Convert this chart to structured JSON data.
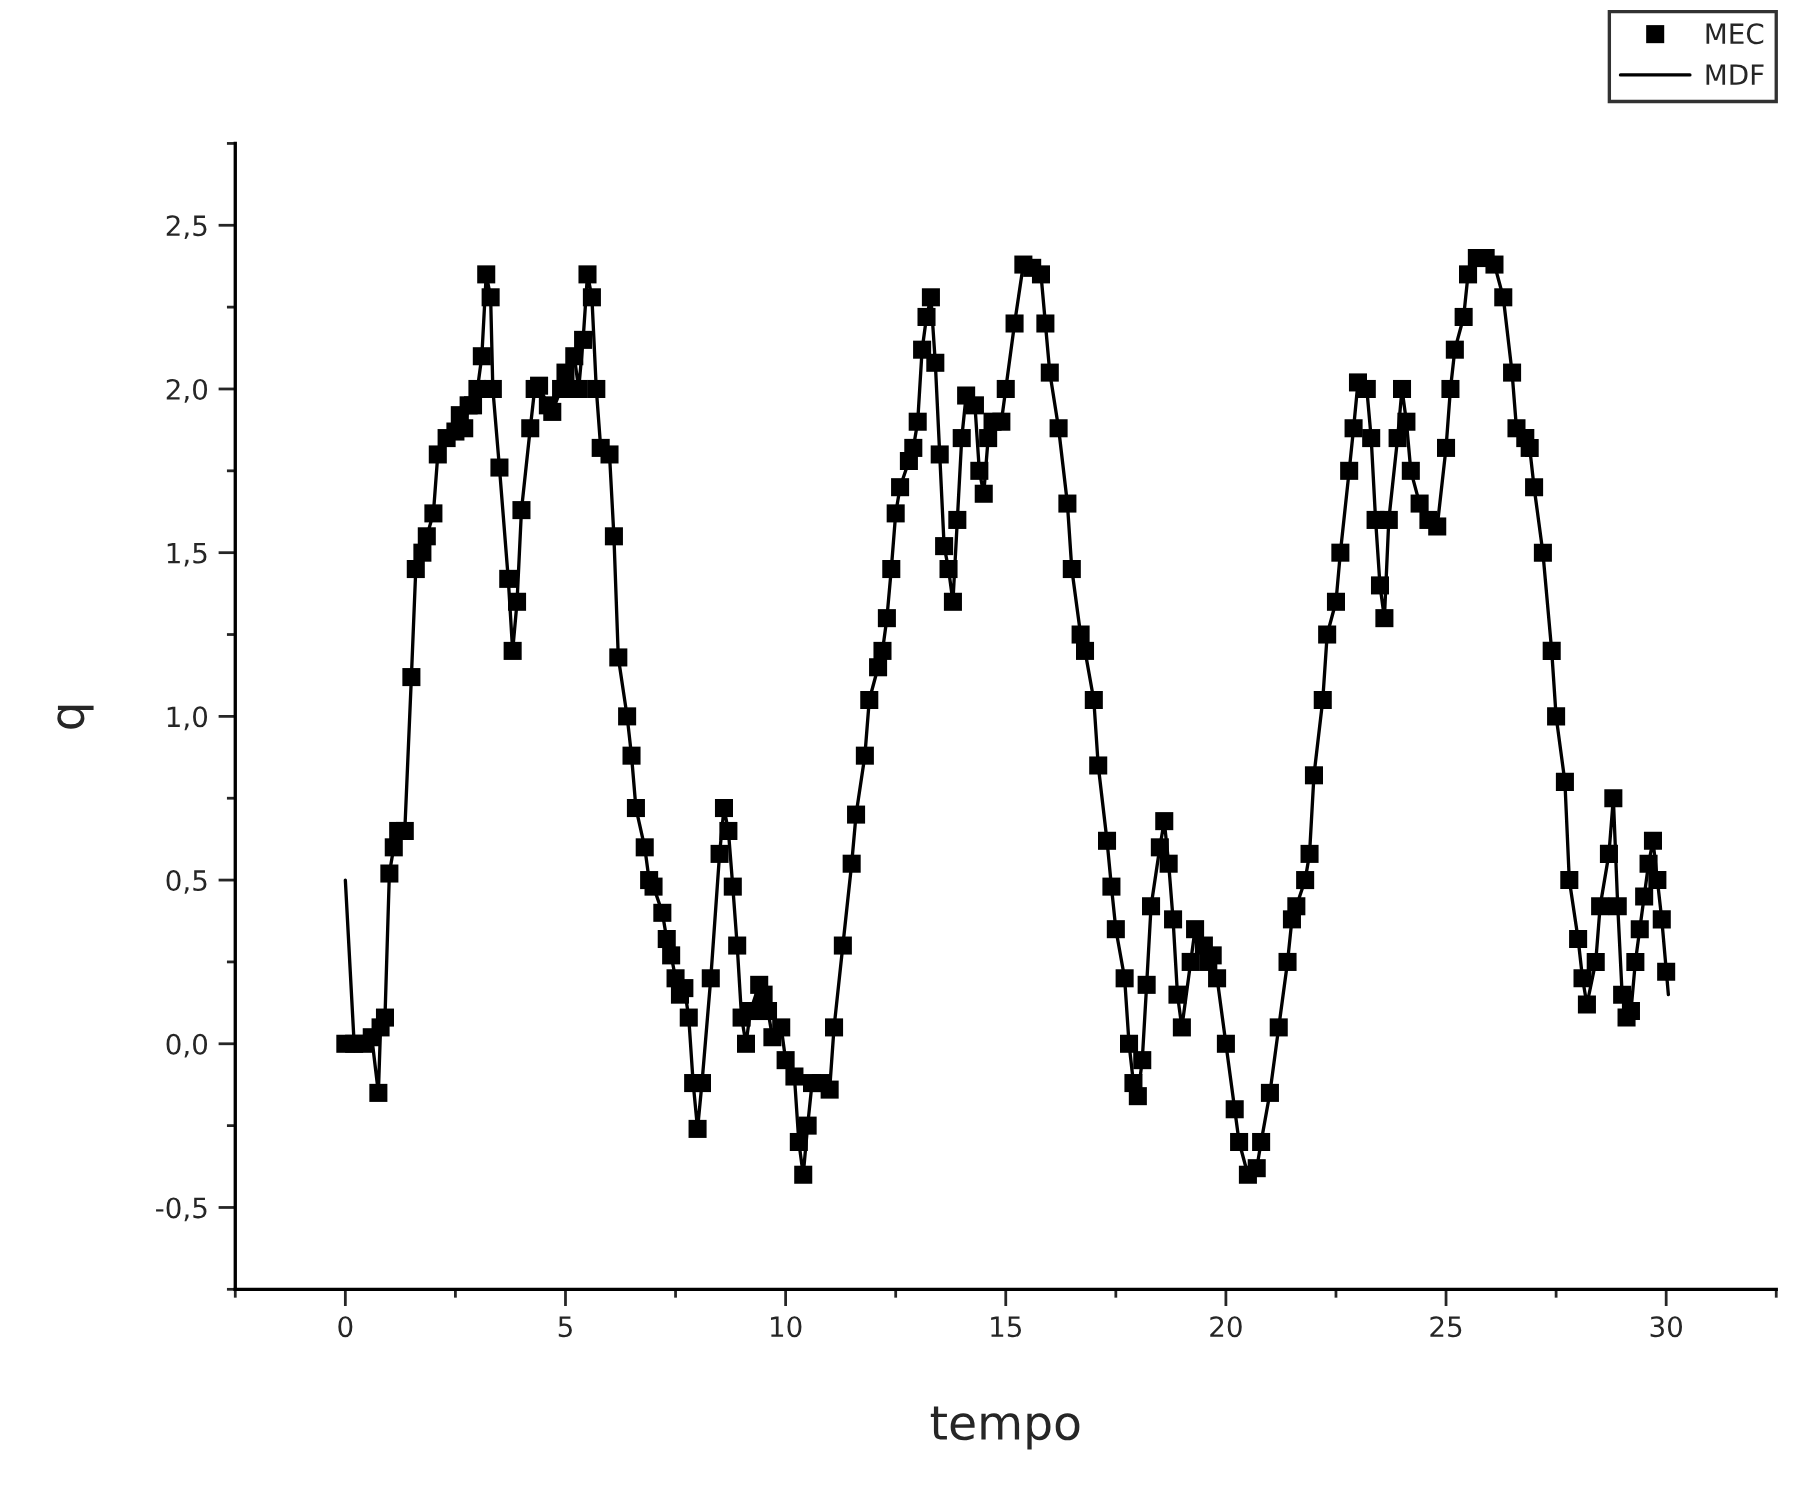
{
  "chart_data": {
    "type": "scatter",
    "xlabel": "tempo",
    "ylabel": "q",
    "xlim": [
      -2.5,
      32.5
    ],
    "ylim": [
      -0.75,
      2.75
    ],
    "xticks": [
      0,
      5,
      10,
      15,
      20,
      25,
      30
    ],
    "yticks": [
      {
        "value": -0.5,
        "label": "-0,5"
      },
      {
        "value": 0,
        "label": "0,0"
      },
      {
        "value": 0.5,
        "label": "0,5"
      },
      {
        "value": 1.0,
        "label": "1,0"
      },
      {
        "value": 1.5,
        "label": "1,5"
      },
      {
        "value": 2.0,
        "label": "2,0"
      },
      {
        "value": 2.5,
        "label": "2,5"
      }
    ],
    "legend": "top right",
    "grid": false,
    "series": [
      {
        "name": "MEC",
        "marker": "square",
        "color": "#000000",
        "x": [
          0,
          0.2,
          0.4,
          0.6,
          0.75,
          0.8,
          0.9,
          1.0,
          1.1,
          1.2,
          1.35,
          1.5,
          1.6,
          1.75,
          1.85,
          2.0,
          2.1,
          2.3,
          2.5,
          2.6,
          2.7,
          2.8,
          2.9,
          3.0,
          3.1,
          3.2,
          3.3,
          3.35,
          3.5,
          3.7,
          3.8,
          3.9,
          4.0,
          4.2,
          4.3,
          4.4,
          4.6,
          4.7,
          4.9,
          5.0,
          5.2,
          5.3,
          5.4,
          5.5,
          5.6,
          5.7,
          5.8,
          6.0,
          6.1,
          6.2,
          6.4,
          6.5,
          6.6,
          6.8,
          6.9,
          7.0,
          7.2,
          7.3,
          7.4,
          7.5,
          7.6,
          7.7,
          7.8,
          7.9,
          8.0,
          8.1,
          8.3,
          8.5,
          8.6,
          8.7,
          8.8,
          8.9,
          9.0,
          9.1,
          9.2,
          9.4,
          9.5,
          9.6,
          9.7,
          9.9,
          10.0,
          10.2,
          10.3,
          10.4,
          10.5,
          10.6,
          10.8,
          11.0,
          11.1,
          11.3,
          11.5,
          11.6,
          11.8,
          11.9,
          12.1,
          12.2,
          12.3,
          12.4,
          12.5,
          12.6,
          12.8,
          12.9,
          13.0,
          13.1,
          13.2,
          13.3,
          13.4,
          13.5,
          13.6,
          13.7,
          13.8,
          13.9,
          14.0,
          14.1,
          14.3,
          14.4,
          14.5,
          14.6,
          14.7,
          14.9,
          15.0,
          15.2,
          15.4,
          15.6,
          15.8,
          15.9,
          16.0,
          16.2,
          16.4,
          16.5,
          16.7,
          16.8,
          17.0,
          17.1,
          17.3,
          17.4,
          17.5,
          17.7,
          17.8,
          17.9,
          18.0,
          18.1,
          18.2,
          18.3,
          18.5,
          18.6,
          18.7,
          18.8,
          18.9,
          19.0,
          19.2,
          19.3,
          19.5,
          19.6,
          19.7,
          19.8,
          20.0,
          20.2,
          20.3,
          20.5,
          20.7,
          20.8,
          21.0,
          21.2,
          21.4,
          21.5,
          21.6,
          21.8,
          21.9,
          22.0,
          22.2,
          22.3,
          22.5,
          22.6,
          22.8,
          22.9,
          23.0,
          23.2,
          23.3,
          23.4,
          23.5,
          23.6,
          23.7,
          23.9,
          24.0,
          24.1,
          24.2,
          24.4,
          24.6,
          24.8,
          25.0,
          25.1,
          25.2,
          25.4,
          25.5,
          25.7,
          25.9,
          26.1,
          26.3,
          26.5,
          26.6,
          26.8,
          26.9,
          27.0,
          27.2,
          27.4,
          27.5,
          27.7,
          27.8,
          28.0,
          28.1,
          28.2,
          28.4,
          28.5,
          28.7,
          28.8,
          28.9,
          29.0,
          29.1,
          29.2,
          29.3,
          29.4,
          29.5,
          29.6,
          29.7,
          29.8,
          29.9,
          30.0
        ],
        "values": [
          0.0,
          0.0,
          0.0,
          0.02,
          -0.15,
          0.05,
          0.08,
          0.52,
          0.6,
          0.65,
          0.65,
          1.12,
          1.45,
          1.5,
          1.55,
          1.62,
          1.8,
          1.85,
          1.87,
          1.92,
          1.88,
          1.95,
          1.95,
          2.0,
          2.1,
          2.35,
          2.28,
          2.0,
          1.76,
          1.42,
          1.2,
          1.35,
          1.63,
          1.88,
          2.0,
          2.01,
          1.95,
          1.93,
          2.0,
          2.05,
          2.1,
          2.0,
          2.15,
          2.35,
          2.28,
          2.0,
          1.82,
          1.8,
          1.55,
          1.18,
          1.0,
          0.88,
          0.72,
          0.6,
          0.5,
          0.48,
          0.4,
          0.32,
          0.27,
          0.2,
          0.15,
          0.17,
          0.08,
          -0.12,
          -0.26,
          -0.12,
          0.2,
          0.58,
          0.72,
          0.65,
          0.48,
          0.3,
          0.08,
          0.0,
          0.1,
          0.18,
          0.15,
          0.1,
          0.02,
          0.05,
          -0.05,
          -0.1,
          -0.3,
          -0.4,
          -0.25,
          -0.12,
          -0.12,
          -0.14,
          0.05,
          0.3,
          0.55,
          0.7,
          0.88,
          1.05,
          1.15,
          1.2,
          1.3,
          1.45,
          1.62,
          1.7,
          1.78,
          1.82,
          1.9,
          2.12,
          2.22,
          2.28,
          2.08,
          1.8,
          1.52,
          1.45,
          1.35,
          1.6,
          1.85,
          1.98,
          1.95,
          1.75,
          1.68,
          1.85,
          1.9,
          1.9,
          2.0,
          2.2,
          2.38,
          2.37,
          2.35,
          2.2,
          2.05,
          1.88,
          1.65,
          1.45,
          1.25,
          1.2,
          1.05,
          0.85,
          0.62,
          0.48,
          0.35,
          0.2,
          0.0,
          -0.12,
          -0.16,
          -0.05,
          0.18,
          0.42,
          0.6,
          0.68,
          0.55,
          0.38,
          0.15,
          0.05,
          0.25,
          0.35,
          0.3,
          0.25,
          0.27,
          0.2,
          0.0,
          -0.2,
          -0.3,
          -0.4,
          -0.38,
          -0.3,
          -0.15,
          0.05,
          0.25,
          0.38,
          0.42,
          0.5,
          0.58,
          0.82,
          1.05,
          1.25,
          1.35,
          1.5,
          1.75,
          1.88,
          2.02,
          2.0,
          1.85,
          1.6,
          1.4,
          1.3,
          1.6,
          1.85,
          2.0,
          1.9,
          1.75,
          1.65,
          1.6,
          1.58,
          1.82,
          2.0,
          2.12,
          2.22,
          2.35,
          2.4,
          2.4,
          2.38,
          2.28,
          2.05,
          1.88,
          1.85,
          1.82,
          1.7,
          1.5,
          1.2,
          1.0,
          0.8,
          0.5,
          0.32,
          0.2,
          0.12,
          0.25,
          0.42,
          0.58,
          0.75,
          0.42,
          0.15,
          0.08,
          0.1,
          0.25,
          0.35,
          0.45,
          0.55,
          0.62,
          0.5,
          0.38,
          0.22
        ]
      },
      {
        "name": "MDF",
        "type": "line",
        "marker": "none",
        "line_style": "solid",
        "color": "#000000",
        "x": [
          0,
          0.2,
          0.4,
          0.6,
          0.75,
          0.8,
          0.9,
          1.0,
          1.1,
          1.2,
          1.35,
          1.5,
          1.6,
          1.75,
          1.85,
          2.0,
          2.1,
          2.3,
          2.5,
          2.6,
          2.7,
          2.8,
          2.9,
          3.0,
          3.1,
          3.2,
          3.3,
          3.35,
          3.5,
          3.7,
          3.8,
          3.9,
          4.0,
          4.2,
          4.3,
          4.4,
          4.6,
          4.7,
          4.9,
          5.0,
          5.2,
          5.3,
          5.4,
          5.5,
          5.6,
          5.7,
          5.8,
          6.0,
          6.1,
          6.2,
          6.4,
          6.5,
          6.6,
          6.8,
          6.9,
          7.0,
          7.2,
          7.3,
          7.4,
          7.5,
          7.6,
          7.7,
          7.8,
          7.9,
          8.0,
          8.1,
          8.3,
          8.5,
          8.6,
          8.7,
          8.8,
          8.9,
          9.0,
          9.1,
          9.2,
          9.4,
          9.5,
          9.6,
          9.7,
          9.9,
          10.0,
          10.2,
          10.3,
          10.4,
          10.5,
          10.6,
          10.8,
          11.0,
          11.1,
          11.3,
          11.5,
          11.6,
          11.8,
          11.9,
          12.1,
          12.2,
          12.3,
          12.4,
          12.5,
          12.6,
          12.8,
          12.9,
          13.0,
          13.1,
          13.2,
          13.3,
          13.4,
          13.5,
          13.6,
          13.7,
          13.8,
          13.9,
          14.0,
          14.1,
          14.3,
          14.4,
          14.5,
          14.6,
          14.7,
          14.9,
          15.0,
          15.2,
          15.4,
          15.6,
          15.8,
          15.9,
          16.0,
          16.2,
          16.4,
          16.5,
          16.7,
          16.8,
          17.0,
          17.1,
          17.3,
          17.4,
          17.5,
          17.7,
          17.8,
          17.9,
          18.0,
          18.1,
          18.2,
          18.3,
          18.5,
          18.6,
          18.7,
          18.8,
          18.9,
          19.0,
          19.2,
          19.3,
          19.5,
          19.6,
          19.7,
          19.8,
          20.0,
          20.2,
          20.3,
          20.5,
          20.7,
          20.8,
          21.0,
          21.2,
          21.4,
          21.5,
          21.6,
          21.8,
          21.9,
          22.0,
          22.2,
          22.3,
          22.5,
          22.6,
          22.8,
          22.9,
          23.0,
          23.2,
          23.3,
          23.4,
          23.5,
          23.6,
          23.7,
          23.9,
          24.0,
          24.1,
          24.2,
          24.4,
          24.6,
          24.8,
          25.0,
          25.1,
          25.2,
          25.4,
          25.5,
          25.7,
          25.9,
          26.1,
          26.3,
          26.5,
          26.6,
          26.8,
          26.9,
          27.0,
          27.2,
          27.4,
          27.5,
          27.7,
          27.8,
          28.0,
          28.1,
          28.2,
          28.4,
          28.5,
          28.7,
          28.8,
          28.9,
          29.0,
          29.1,
          29.2,
          29.3,
          29.4,
          29.5,
          29.6,
          29.7,
          29.8,
          29.9,
          30.05
        ],
        "values": [
          0.5,
          0.0,
          0.0,
          0.02,
          -0.15,
          0.05,
          0.08,
          0.52,
          0.6,
          0.65,
          0.65,
          1.12,
          1.45,
          1.5,
          1.55,
          1.62,
          1.8,
          1.85,
          1.87,
          1.92,
          1.88,
          1.95,
          1.95,
          2.0,
          2.1,
          2.35,
          2.28,
          2.0,
          1.76,
          1.42,
          1.2,
          1.35,
          1.63,
          1.88,
          2.0,
          2.01,
          1.95,
          1.93,
          2.0,
          2.05,
          2.1,
          2.0,
          2.15,
          2.35,
          2.28,
          2.0,
          1.82,
          1.8,
          1.55,
          1.18,
          1.0,
          0.88,
          0.72,
          0.6,
          0.5,
          0.48,
          0.4,
          0.32,
          0.27,
          0.2,
          0.15,
          0.17,
          0.08,
          -0.12,
          -0.26,
          -0.12,
          0.2,
          0.58,
          0.72,
          0.65,
          0.48,
          0.3,
          0.08,
          0.0,
          0.1,
          0.18,
          0.15,
          0.1,
          0.02,
          0.05,
          -0.05,
          -0.1,
          -0.3,
          -0.4,
          -0.25,
          -0.12,
          -0.12,
          -0.14,
          0.05,
          0.3,
          0.55,
          0.7,
          0.88,
          1.05,
          1.15,
          1.2,
          1.3,
          1.45,
          1.62,
          1.7,
          1.78,
          1.82,
          1.9,
          2.12,
          2.22,
          2.28,
          2.08,
          1.8,
          1.52,
          1.45,
          1.35,
          1.6,
          1.85,
          1.98,
          1.95,
          1.75,
          1.68,
          1.85,
          1.9,
          1.9,
          2.0,
          2.2,
          2.38,
          2.37,
          2.35,
          2.2,
          2.05,
          1.88,
          1.65,
          1.45,
          1.25,
          1.2,
          1.05,
          0.85,
          0.62,
          0.48,
          0.35,
          0.2,
          0.0,
          -0.12,
          -0.16,
          -0.05,
          0.18,
          0.42,
          0.6,
          0.68,
          0.55,
          0.38,
          0.15,
          0.05,
          0.25,
          0.35,
          0.3,
          0.25,
          0.27,
          0.2,
          0.0,
          -0.2,
          -0.3,
          -0.4,
          -0.38,
          -0.3,
          -0.15,
          0.05,
          0.25,
          0.38,
          0.42,
          0.5,
          0.58,
          0.82,
          1.05,
          1.25,
          1.35,
          1.5,
          1.75,
          1.88,
          2.02,
          2.0,
          1.85,
          1.6,
          1.4,
          1.3,
          1.6,
          1.85,
          2.0,
          1.9,
          1.75,
          1.65,
          1.6,
          1.58,
          1.82,
          2.0,
          2.12,
          2.22,
          2.35,
          2.4,
          2.4,
          2.38,
          2.28,
          2.05,
          1.88,
          1.85,
          1.82,
          1.7,
          1.5,
          1.2,
          1.0,
          0.8,
          0.5,
          0.32,
          0.2,
          0.12,
          0.25,
          0.42,
          0.58,
          0.75,
          0.42,
          0.15,
          0.08,
          0.1,
          0.25,
          0.35,
          0.45,
          0.55,
          0.62,
          0.5,
          0.38,
          0.15
        ]
      }
    ]
  }
}
